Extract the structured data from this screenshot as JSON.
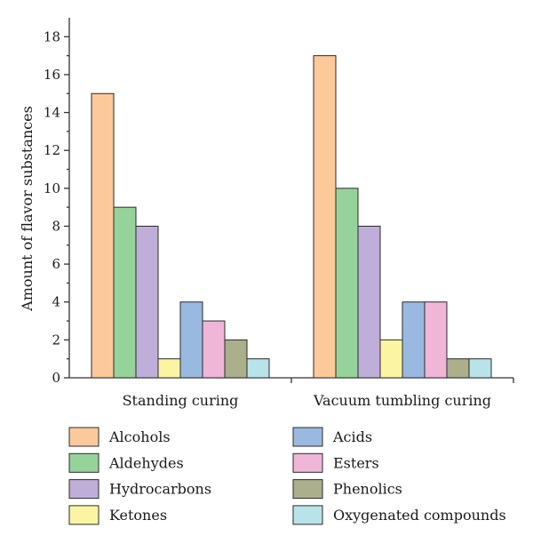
{
  "chart_data": {
    "type": "bar",
    "title": "",
    "xlabel": "",
    "ylabel": "Amount of flavor substances",
    "ylim": [
      0,
      19
    ],
    "yticks": [
      0,
      2,
      4,
      6,
      8,
      10,
      12,
      14,
      16,
      18
    ],
    "categories": [
      "Standing curing",
      "Vacuum tumbling curing"
    ],
    "series": [
      {
        "name": "Alcohols",
        "color": "#FBC99A",
        "values": [
          15,
          17
        ]
      },
      {
        "name": "Aldehydes",
        "color": "#96D39A",
        "values": [
          9,
          10
        ]
      },
      {
        "name": "Hydrocarbons",
        "color": "#C0AEDA",
        "values": [
          8,
          8
        ]
      },
      {
        "name": "Ketones",
        "color": "#FBF5A3",
        "values": [
          1,
          2
        ]
      },
      {
        "name": "Acids",
        "color": "#9AB9E0",
        "values": [
          4,
          4
        ]
      },
      {
        "name": "Esters",
        "color": "#EFB6D7",
        "values": [
          3,
          4
        ]
      },
      {
        "name": "Phenolics",
        "color": "#ABAF8C",
        "values": [
          2,
          1
        ]
      },
      {
        "name": "Oxygenated compounds",
        "color": "#B8E3E9",
        "values": [
          1,
          1
        ]
      }
    ],
    "grid": false,
    "legend": "bottom"
  }
}
